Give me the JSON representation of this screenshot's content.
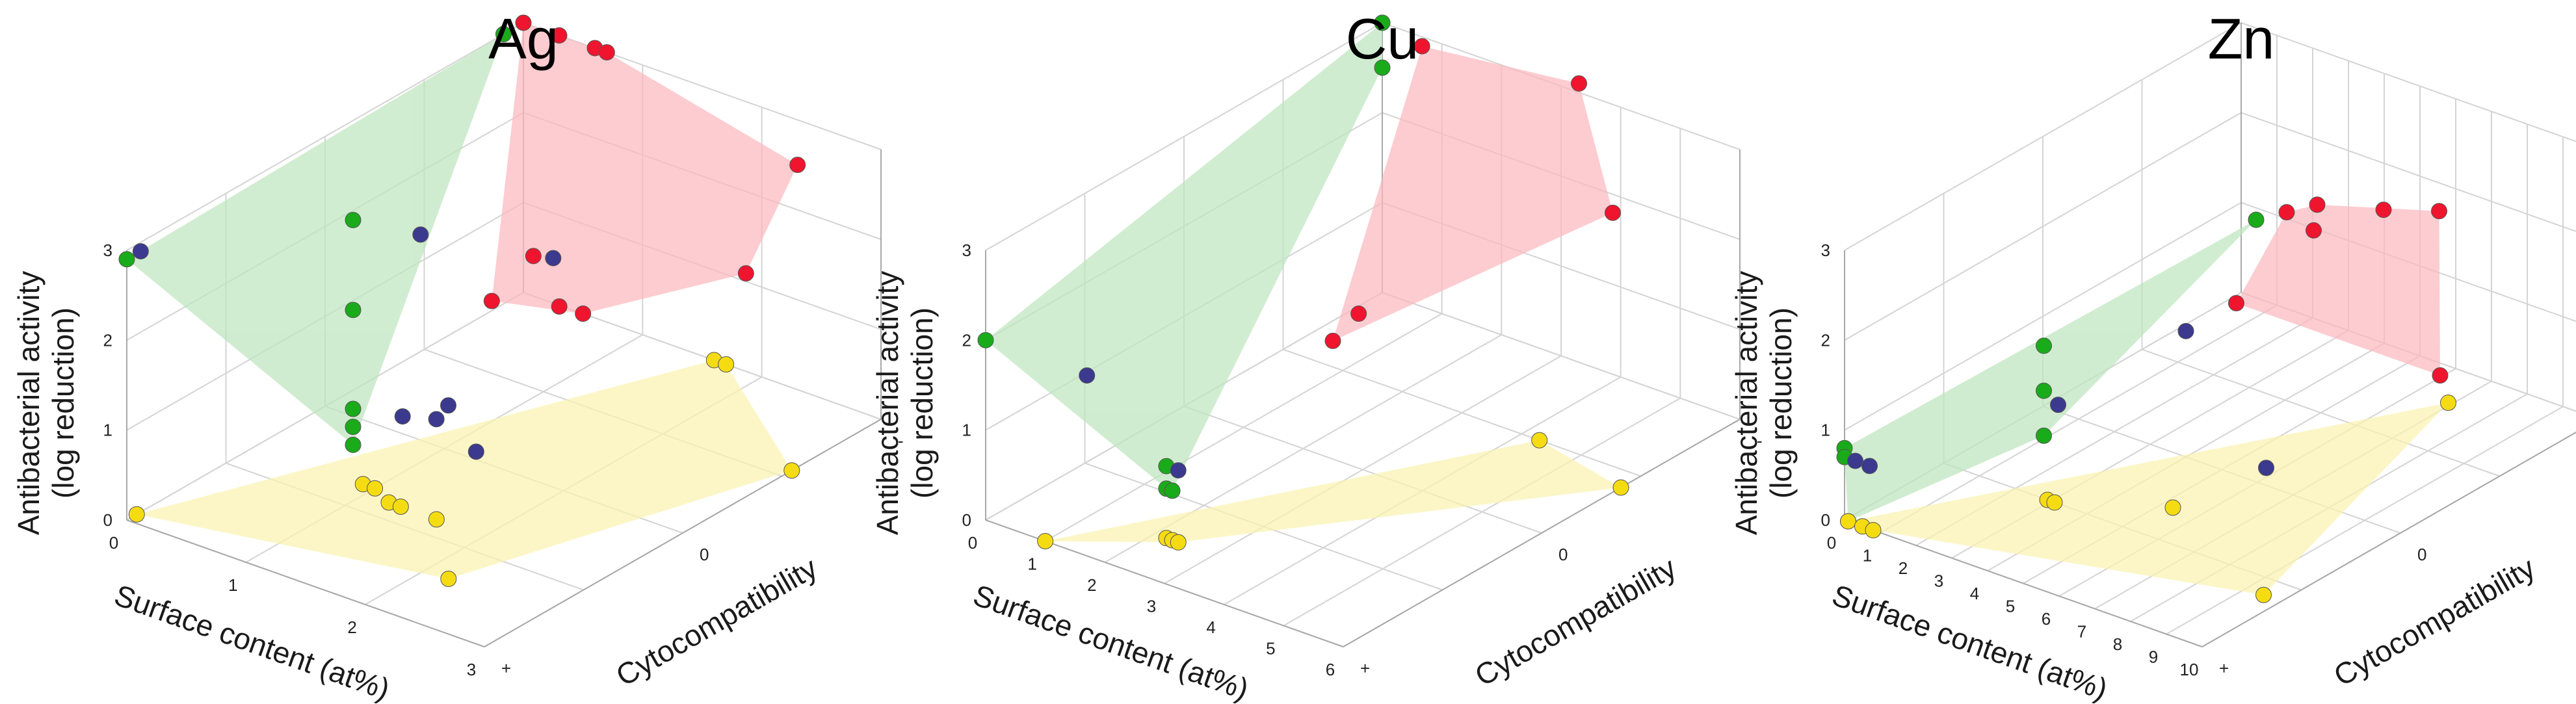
{
  "colors": {
    "green": "#1aab1a",
    "red": "#f0152e",
    "blue": "#3b3a8e",
    "yellow": "#f5dc12",
    "green_fill": "#bfe6bf",
    "red_fill": "#fbb9bf",
    "yellow_fill": "#fbf3b2"
  },
  "chart_data": [
    {
      "type": "scatter",
      "title": "Ag",
      "zlabel_line1": "Antibacterial activity",
      "zlabel_line2": "(log reduction)",
      "xlabel": "Surface content (at%)",
      "ylabel": "Cytocompatibility",
      "xlim": [
        0,
        3
      ],
      "ylim": [
        "-",
        "+"
      ],
      "zlim": [
        0,
        3
      ],
      "x_ticks": [
        "0",
        "1",
        "2",
        "3"
      ],
      "y_ticks": [
        "-",
        "0",
        "+"
      ],
      "z_ticks": [
        "0",
        "1",
        "2",
        "3"
      ],
      "grid": true,
      "series": [
        {
          "color": "green",
          "points": [
            {
              "x": 0.0,
              "y": 0.9,
              "z": 3.0
            },
            {
              "x": 0.0,
              "y": -1.0,
              "z": 2.9
            },
            {
              "x": 0.9,
              "y": -0.4,
              "z": 3.0
            },
            {
              "x": 0.9,
              "y": -0.4,
              "z": 2.0
            },
            {
              "x": 0.9,
              "y": -0.4,
              "z": 0.9
            },
            {
              "x": 0.9,
              "y": -0.4,
              "z": 0.7
            },
            {
              "x": 0.9,
              "y": -0.4,
              "z": 0.5
            }
          ]
        },
        {
          "color": "red",
          "points": [
            {
              "x": 0.0,
              "y": 1.0,
              "z": 3.0
            },
            {
              "x": 0.3,
              "y": 1.0,
              "z": 3.0
            },
            {
              "x": 0.6,
              "y": 1.0,
              "z": 3.0
            },
            {
              "x": 0.7,
              "y": 1.0,
              "z": 3.0
            },
            {
              "x": 2.3,
              "y": 1.0,
              "z": 2.5
            },
            {
              "x": 2.2,
              "y": 0.8,
              "z": 1.5
            },
            {
              "x": 0.25,
              "y": 0.9,
              "z": 0.65
            },
            {
              "x": 0.4,
              "y": 0.6,
              "z": 0.6
            },
            {
              "x": 0.8,
              "y": 0.7,
              "z": 0.6
            },
            {
              "x": 0.5,
              "y": 1.0,
              "z": 0.0
            }
          ]
        },
        {
          "color": "blue",
          "points": [
            {
              "x": 0.0,
              "y": -0.93,
              "z": 2.9
            },
            {
              "x": 1.3,
              "y": -0.3,
              "z": 2.9
            },
            {
              "x": 0.25,
              "y": 1.0,
              "z": 0.5
            },
            {
              "x": 0.9,
              "y": -0.15,
              "z": 0.5
            },
            {
              "x": 1.1,
              "y": -0.1,
              "z": 0.5
            },
            {
              "x": 1.2,
              "y": -0.1,
              "z": 0.7
            },
            {
              "x": 1.6,
              "y": -0.2,
              "z": 0.5
            }
          ]
        },
        {
          "color": "yellow",
          "points": [
            {
              "x": 0.0,
              "y": -0.95,
              "z": 0.0
            },
            {
              "x": 0.9,
              "y": -0.35,
              "z": 0.0
            },
            {
              "x": 1.0,
              "y": -0.35,
              "z": 0.0
            },
            {
              "x": 1.2,
              "y": -0.4,
              "z": 0.0
            },
            {
              "x": 1.3,
              "y": -0.4,
              "z": 0.0
            },
            {
              "x": 1.6,
              "y": -0.4,
              "z": 0.0
            },
            {
              "x": 1.6,
              "y": 1.0,
              "z": 0.0
            },
            {
              "x": 1.7,
              "y": 1.0,
              "z": 0.0
            },
            {
              "x": 2.2,
              "y": -0.7,
              "z": 0.0
            },
            {
              "x": 3.0,
              "y": 0.55,
              "z": 0.0
            }
          ]
        }
      ]
    },
    {
      "type": "scatter",
      "title": "Cu",
      "zlabel_line1": "Antibacterial activity",
      "zlabel_line2": "(log reduction)",
      "xlabel": "Surface content (at%)",
      "ylabel": "Cytocompatibility",
      "xlim": [
        0,
        6
      ],
      "ylim": [
        "-",
        "+"
      ],
      "zlim": [
        0,
        3
      ],
      "x_ticks": [
        "0",
        "1",
        "2",
        "3",
        "4",
        "5",
        "6"
      ],
      "y_ticks": [
        "-",
        "0",
        "+"
      ],
      "z_ticks": [
        "0",
        "1",
        "2",
        "3"
      ],
      "grid": true,
      "series": [
        {
          "color": "green",
          "points": [
            {
              "x": 0.0,
              "y": -1.0,
              "z": 2.0
            },
            {
              "x": 0.0,
              "y": 1.0,
              "z": 3.0
            },
            {
              "x": 0.0,
              "y": 1.0,
              "z": 2.5
            },
            {
              "x": 2.2,
              "y": -0.75,
              "z": 0.8
            },
            {
              "x": 2.2,
              "y": -0.75,
              "z": 0.55
            },
            {
              "x": 2.3,
              "y": -0.75,
              "z": 0.55
            }
          ]
        },
        {
          "color": "red",
          "points": [
            {
              "x": 1.0,
              "y": 0.9,
              "z": 3.1
            },
            {
              "x": 3.3,
              "y": 1.0,
              "z": 3.1
            },
            {
              "x": 4.2,
              "y": 0.9,
              "z": 2.0
            },
            {
              "x": 1.6,
              "y": 0.4,
              "z": 0.9
            },
            {
              "x": 1.5,
              "y": 0.3,
              "z": 0.7
            }
          ]
        },
        {
          "color": "blue",
          "points": [
            {
              "x": 1.2,
              "y": -0.85,
              "z": 1.7
            },
            {
              "x": 2.4,
              "y": -0.75,
              "z": 0.8
            }
          ]
        },
        {
          "color": "yellow",
          "points": [
            {
              "x": 1.0,
              "y": -1.0,
              "z": 0.0
            },
            {
              "x": 2.2,
              "y": -0.75,
              "z": 0.0
            },
            {
              "x": 2.3,
              "y": -0.75,
              "z": 0.0
            },
            {
              "x": 2.4,
              "y": -0.75,
              "z": 0.0
            },
            {
              "x": 4.3,
              "y": 0.5,
              "z": 0.0
            },
            {
              "x": 6.0,
              "y": 0.4,
              "z": 0.0
            }
          ]
        }
      ]
    },
    {
      "type": "scatter",
      "title": "Zn",
      "zlabel_line1": "Antibacterial activity",
      "zlabel_line2": "(log reduction)",
      "xlabel": "Surface content (at%)",
      "ylabel": "Cytocompatibility",
      "xlim": [
        0,
        10
      ],
      "ylim": [
        "-",
        "+"
      ],
      "zlim": [
        0,
        3
      ],
      "x_ticks": [
        "0",
        "1",
        "2",
        "3",
        "4",
        "5",
        "6",
        "7",
        "8",
        "9",
        "10"
      ],
      "y_ticks": [
        "-",
        "0",
        "+"
      ],
      "z_ticks": [
        "0",
        "1",
        "2",
        "3"
      ],
      "grid": true,
      "series": [
        {
          "color": "green",
          "points": [
            {
              "x": 0.0,
              "y": -1.0,
              "z": 0.8
            },
            {
              "x": 0.0,
              "y": -1.0,
              "z": 0.7
            },
            {
              "x": 0.1,
              "y": -1.0,
              "z": 0.0
            },
            {
              "x": 2.8,
              "y": -0.5,
              "z": 1.7
            },
            {
              "x": 2.8,
              "y": -0.5,
              "z": 1.2
            },
            {
              "x": 2.8,
              "y": -0.5,
              "z": 0.7
            },
            {
              "x": 4.3,
              "y": 0.3,
              "z": 2.3
            }
          ]
        },
        {
          "color": "red",
          "points": [
            {
              "x": 4.6,
              "y": 0.4,
              "z": 2.3
            },
            {
              "x": 4.9,
              "y": 0.5,
              "z": 2.3
            },
            {
              "x": 4.8,
              "y": 0.5,
              "z": 2.0
            },
            {
              "x": 4.3,
              "y": 0.2,
              "z": 1.5
            },
            {
              "x": 6.2,
              "y": 0.6,
              "z": 2.3
            },
            {
              "x": 7.2,
              "y": 0.7,
              "z": 2.3
            },
            {
              "x": 10.0,
              "y": 0.2,
              "z": 1.5
            }
          ]
        },
        {
          "color": "blue",
          "points": [
            {
              "x": 0.3,
              "y": -1.0,
              "z": 0.7
            },
            {
              "x": 0.7,
              "y": -1.0,
              "z": 0.7
            },
            {
              "x": 3.2,
              "y": -0.5,
              "z": 1.1
            },
            {
              "x": 4.0,
              "y": 0.0,
              "z": 1.4
            },
            {
              "x": 6.8,
              "y": -0.1,
              "z": 0.4
            }
          ]
        },
        {
          "color": "yellow",
          "points": [
            {
              "x": 0.1,
              "y": -1.0,
              "z": 0.0
            },
            {
              "x": 0.5,
              "y": -1.0,
              "z": 0.0
            },
            {
              "x": 0.8,
              "y": -1.0,
              "z": 0.0
            },
            {
              "x": 2.9,
              "y": -0.5,
              "z": 0.0
            },
            {
              "x": 3.1,
              "y": -0.5,
              "z": 0.0
            },
            {
              "x": 5.3,
              "y": -0.3,
              "z": 0.0
            },
            {
              "x": 6.9,
              "y": 0.8,
              "z": 0.0
            },
            {
              "x": 9.5,
              "y": -0.6,
              "z": 0.0
            }
          ]
        }
      ]
    }
  ]
}
